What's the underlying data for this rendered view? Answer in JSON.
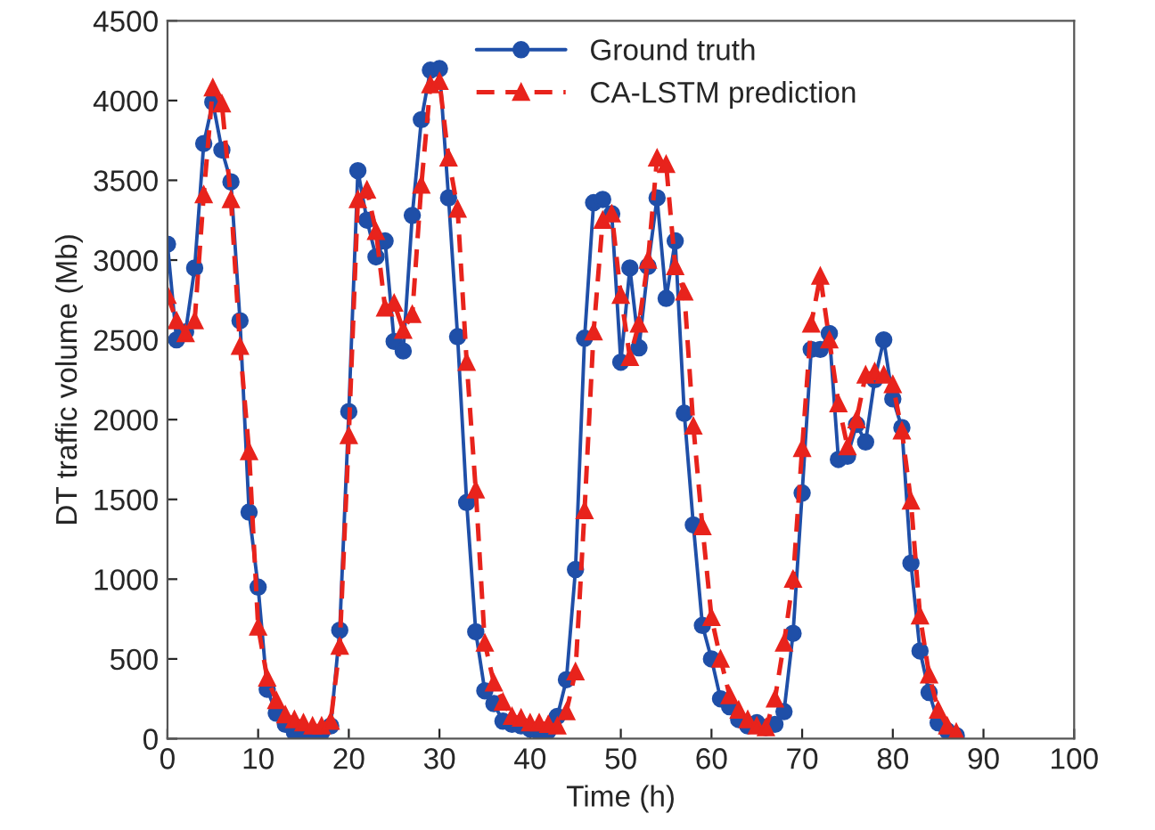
{
  "chart_data": {
    "type": "line",
    "xlabel": "Time (h)",
    "ylabel": "DT traffic volume (Mb)",
    "x": [
      0,
      1,
      2,
      3,
      4,
      5,
      6,
      7,
      8,
      9,
      10,
      11,
      12,
      13,
      14,
      15,
      16,
      17,
      18,
      19,
      20,
      21,
      22,
      23,
      24,
      25,
      26,
      27,
      28,
      29,
      30,
      31,
      32,
      33,
      34,
      35,
      36,
      37,
      38,
      39,
      40,
      41,
      42,
      43,
      44,
      45,
      46,
      47,
      48,
      49,
      50,
      51,
      52,
      53,
      54,
      55,
      56,
      57,
      58,
      59,
      60,
      61,
      62,
      63,
      64,
      65,
      66,
      67,
      68,
      69,
      70,
      71,
      72,
      73,
      74,
      75,
      76,
      77,
      78,
      79,
      80,
      81,
      82,
      83,
      84,
      85,
      86,
      87
    ],
    "series": [
      {
        "name": "Ground truth",
        "color": "#1f4fa8",
        "marker": "circle",
        "line_style": "solid",
        "values": [
          3100,
          2500,
          2550,
          2950,
          3730,
          3990,
          3690,
          3490,
          2620,
          1420,
          950,
          310,
          160,
          90,
          40,
          30,
          20,
          40,
          80,
          680,
          2050,
          3560,
          3250,
          3020,
          3120,
          2490,
          2430,
          3280,
          3880,
          4190,
          4200,
          3390,
          2520,
          1480,
          670,
          300,
          220,
          110,
          90,
          80,
          60,
          40,
          50,
          140,
          370,
          1060,
          2510,
          3360,
          3380,
          3290,
          2360,
          2950,
          2450,
          2960,
          3390,
          2760,
          3120,
          2040,
          1340,
          710,
          500,
          250,
          200,
          120,
          80,
          100,
          70,
          90,
          170,
          660,
          1540,
          2440,
          2440,
          2540,
          1750,
          1770,
          1970,
          1860,
          2250,
          2500,
          2130,
          1950,
          1100,
          550,
          290,
          100,
          50,
          20
        ]
      },
      {
        "name": "CA-LSTM prediction",
        "color": "#e8231c",
        "marker": "triangle",
        "line_style": "dashed",
        "values": [
          2780,
          2620,
          2540,
          2620,
          3410,
          4080,
          3980,
          3380,
          2460,
          1800,
          700,
          380,
          240,
          150,
          120,
          100,
          80,
          80,
          110,
          580,
          1900,
          3380,
          3440,
          3180,
          2700,
          2730,
          2560,
          2660,
          3470,
          4100,
          4120,
          3640,
          3320,
          2360,
          1560,
          600,
          350,
          230,
          140,
          130,
          100,
          100,
          90,
          80,
          170,
          420,
          1430,
          2550,
          3250,
          3290,
          2780,
          2390,
          2600,
          3000,
          3640,
          3600,
          2960,
          2800,
          1960,
          1330,
          760,
          500,
          270,
          180,
          120,
          80,
          70,
          250,
          600,
          1000,
          1820,
          2600,
          2900,
          2500,
          2100,
          1830,
          2000,
          2280,
          2300,
          2280,
          2220,
          1930,
          1490,
          770,
          400,
          180,
          80,
          40
        ]
      }
    ],
    "xlim": [
      0,
      100
    ],
    "xticks": [
      0,
      10,
      20,
      30,
      40,
      50,
      60,
      70,
      80,
      90,
      100
    ],
    "ylim": [
      0,
      4500
    ],
    "yticks": [
      0,
      500,
      1000,
      1500,
      2000,
      2500,
      3000,
      3500,
      4000,
      4500
    ],
    "grid": false,
    "legend": "top right"
  }
}
